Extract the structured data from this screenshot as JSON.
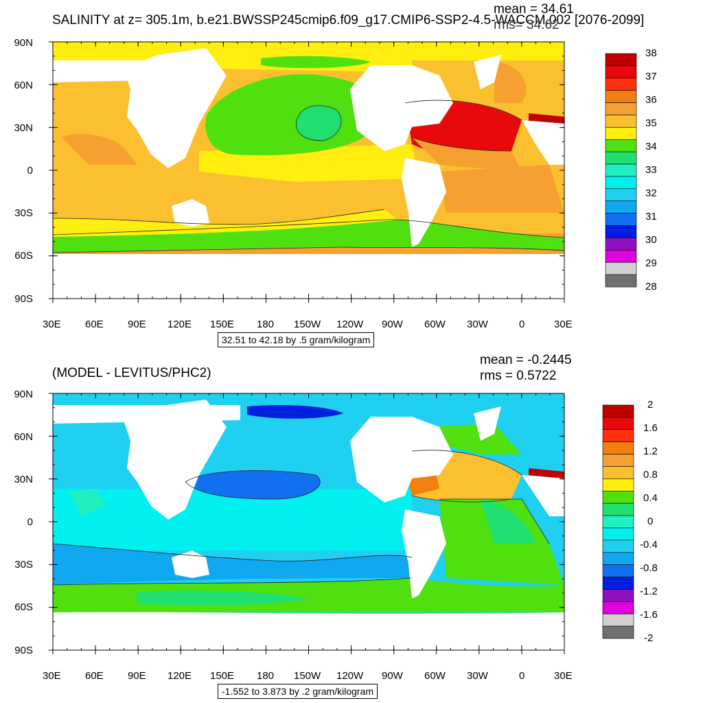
{
  "panels": [
    {
      "title": "SALINITY at z= 305.1m, b.e21.BWSSP245cmip6.f09_g17.CMIP6-SSP2-4.5-WACCM.002 [2076-2099]",
      "mean_text": "mean = 34.61",
      "rms_text": "rms= 34.62",
      "contour_info": "32.51 to 42.18 by .5 gram/kilogram",
      "colorbar_labels": [
        "38",
        "37",
        "36",
        "35",
        "34",
        "33",
        "32",
        "31",
        "30",
        "29",
        "28"
      ],
      "colorbar_colors": [
        "#c00000",
        "#e80a0a",
        "#ff3010",
        "#f08010",
        "#f5a030",
        "#fbc030",
        "#ffee10",
        "#50e010",
        "#20e070",
        "#20f0c0",
        "#00f0f0",
        "#20d0f0",
        "#10a8f0",
        "#1070f0",
        "#0020e0",
        "#9010c0",
        "#e000e0",
        "#d0d0d0",
        "#707070"
      ]
    },
    {
      "title": "(MODEL - LEVITUS/PHC2)",
      "mean_text": "mean = -0.2445",
      "rms_text": "rms = 0.5722",
      "contour_info": "-1.552 to 3.873 by .2 gram/kilogram",
      "colorbar_labels": [
        "2",
        "1.6",
        "1.2",
        "0.8",
        "0.4",
        "0",
        "-0.4",
        "-0.8",
        "-1.2",
        "-1.6",
        "-2"
      ],
      "colorbar_colors": [
        "#c00000",
        "#e80a0a",
        "#ff3010",
        "#f08010",
        "#f5a030",
        "#fbc030",
        "#ffee10",
        "#50e010",
        "#20e070",
        "#20f0c0",
        "#00f0f0",
        "#20d0f0",
        "#10a8f0",
        "#1070f0",
        "#0020e0",
        "#9010c0",
        "#e000e0",
        "#d0d0d0",
        "#707070"
      ]
    }
  ],
  "lat_labels": [
    "90N",
    "60N",
    "30N",
    "0",
    "30S",
    "60S",
    "90S"
  ],
  "lon_labels": [
    "30E",
    "60E",
    "90E",
    "120E",
    "150E",
    "180",
    "150W",
    "120W",
    "90W",
    "60W",
    "30W",
    "0",
    "30E"
  ]
}
